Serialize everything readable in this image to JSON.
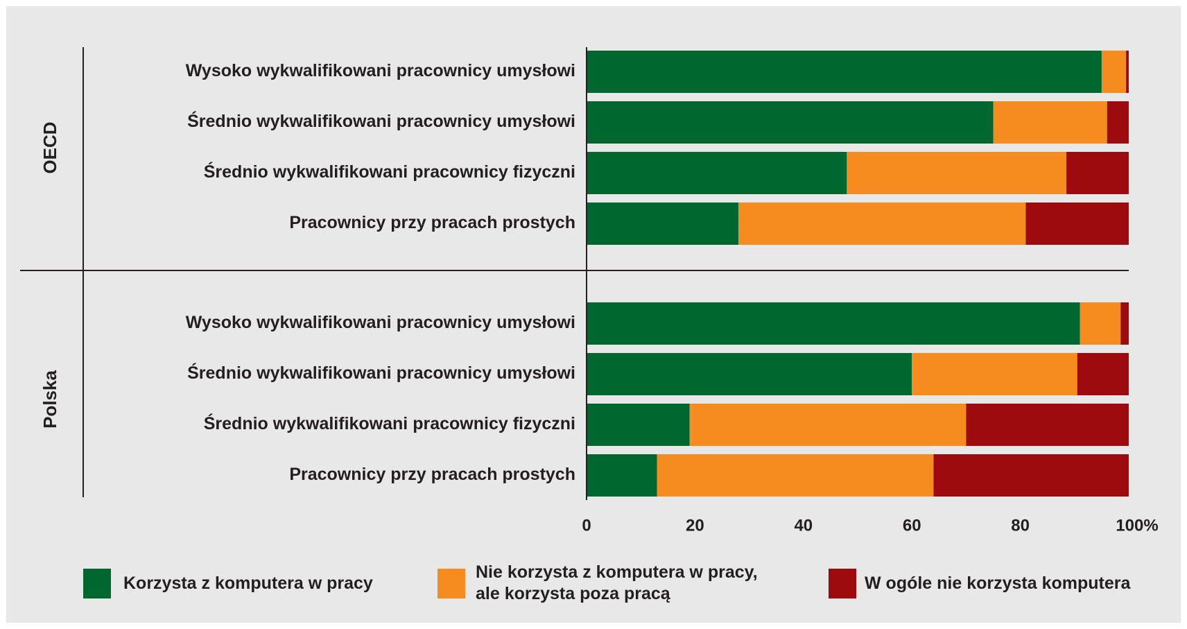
{
  "chart_data": {
    "type": "bar",
    "orientation": "horizontal",
    "stacked": true,
    "groups": [
      {
        "name": "OECD",
        "categories": [
          "Wysoko wykwalifikowani pracownicy umysłowi",
          "Średnio wykwalifikowani pracownicy umysłowi",
          "Średnio wykwalifikowani pracownicy fizyczni",
          "Pracownicy przy pracach prostych"
        ]
      },
      {
        "name": "Polska",
        "categories": [
          "Wysoko wykwalifikowani pracownicy umysłowi",
          "Średnio wykwalifikowani pracownicy umysłowi",
          "Średnio wykwalifikowani pracownicy fizyczni",
          "Pracownicy przy pracach prostych"
        ]
      }
    ],
    "series": [
      {
        "name": "Korzysta z komputera w pracy",
        "color": "#00672f",
        "values": [
          [
            95,
            75,
            48,
            28
          ],
          [
            91,
            60,
            19,
            13
          ]
        ]
      },
      {
        "name": "Nie korzysta z komputera w pracy,\nale korzysta poza pracą",
        "color": "#f68b1f",
        "values": [
          [
            4.5,
            21,
            40.5,
            53
          ],
          [
            7.5,
            30.5,
            51,
            51
          ]
        ]
      },
      {
        "name": "W ogóle nie korzysta komputera",
        "color": "#9d0b0f",
        "values": [
          [
            0.5,
            4,
            11.5,
            19
          ],
          [
            1.5,
            9.5,
            30,
            36
          ]
        ]
      }
    ],
    "xlim": [
      0,
      100
    ],
    "xticks": [
      0,
      20,
      40,
      60,
      80,
      {
        "value": 100,
        "label": "100%"
      }
    ]
  }
}
